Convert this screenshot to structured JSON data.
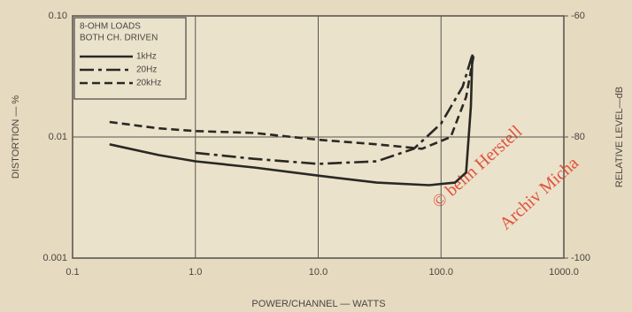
{
  "chart_data": {
    "type": "line",
    "legend_title": [
      "8-OHM LOADS",
      "BOTH CH. DRIVEN"
    ],
    "xlabel": "POWER/CHANNEL — WATTS",
    "ylabel": "DISTORTION — %",
    "y2label": "RELATIVE LEVEL—dB",
    "annotations": [
      "© beim Herstell",
      "Archiv Micha"
    ],
    "xscale": "log",
    "yscale": "log",
    "grid": true,
    "legend": "upper left",
    "xlim": [
      0.1,
      1000
    ],
    "xticks": [
      0.1,
      {
        "value": 1,
        "label": "1.0"
      },
      {
        "value": 10,
        "label": "10.0"
      },
      {
        "value": 100,
        "label": "100.0"
      },
      {
        "value": 1000,
        "label": "1000.0"
      }
    ],
    "ylim": [
      0.001,
      0.1
    ],
    "yticks": [
      0.001,
      0.01,
      {
        "value": 0.1,
        "label": "0.10"
      }
    ],
    "y2lim": [
      -100,
      -60
    ],
    "y2ticks": [
      -100,
      -80,
      -60
    ],
    "series": [
      {
        "name": "1kHz",
        "color": "#2a2824",
        "style": "solid",
        "x": [
          0.2,
          0.5,
          1,
          3,
          10,
          30,
          80,
          130,
          160,
          175,
          180
        ],
        "values": [
          0.0087,
          0.0071,
          0.0063,
          0.0056,
          0.0048,
          0.0042,
          0.004,
          0.0042,
          0.0051,
          0.018,
          0.048
        ]
      },
      {
        "name": "20Hz",
        "color": "#2a2824",
        "style": "dashdot",
        "x": [
          1,
          3,
          10,
          30,
          60,
          100,
          150,
          180
        ],
        "values": [
          0.0074,
          0.0066,
          0.006,
          0.0063,
          0.008,
          0.0129,
          0.026,
          0.048
        ]
      },
      {
        "name": "20kHz",
        "color": "#2a2824",
        "style": "dashed",
        "x": [
          0.2,
          0.5,
          1,
          3,
          10,
          30,
          70,
          120,
          160,
          185
        ],
        "values": [
          0.0133,
          0.0118,
          0.0112,
          0.0108,
          0.0095,
          0.0087,
          0.008,
          0.01,
          0.0214,
          0.048
        ]
      }
    ]
  }
}
